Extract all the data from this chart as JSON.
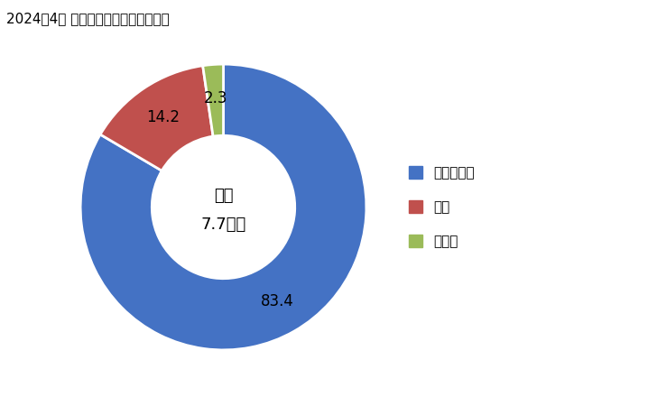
{
  "title": "2024年4月 輸入相手国のシェア（％）",
  "labels": [
    "マレーシア",
    "タイ",
    "その他"
  ],
  "values": [
    83.4,
    14.2,
    2.3
  ],
  "colors": [
    "#4472C4",
    "#C0504D",
    "#9BBB59"
  ],
  "center_text_line1": "総額",
  "center_text_line2": "7.7億円",
  "slice_label_fontsize": 12,
  "legend_fontsize": 11,
  "title_fontsize": 11,
  "background_color": "#FFFFFF"
}
